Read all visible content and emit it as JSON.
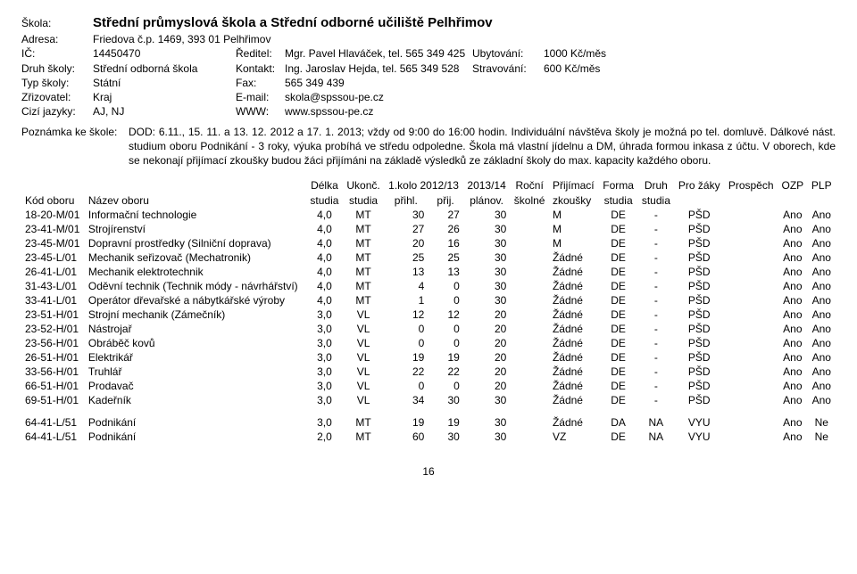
{
  "header": {
    "school_label": "Škola:",
    "school_name": "Střední průmyslová škola a Střední odborné učiliště Pelhřimov",
    "address_label": "Adresa:",
    "address": "Friedova č.p. 1469, 393 01  Pelhřimov",
    "ic_label": "IČ:",
    "ic": "14450470",
    "director_label": "Ředitel:",
    "director": "Mgr. Pavel Hlaváček, tel. 565 349 425",
    "accommodation_label": "Ubytování:",
    "accommodation": "1000 Kč/měs",
    "type_label": "Druh školy:",
    "type": "Střední odborná škola",
    "contact_label": "Kontakt:",
    "contact": "Ing. Jaroslav Hejda, tel. 565 349 528",
    "meals_label": "Stravování:",
    "meals": "600 Kč/měs",
    "schooltype_label": "Typ školy:",
    "schooltype": "Státní",
    "fax_label": "Fax:",
    "fax": "565 349 439",
    "founder_label": "Zřizovatel:",
    "founder": "Kraj",
    "email_label": "E-mail:",
    "email": "skola@spssou-pe.cz",
    "lang_label": "Cizí jazyky:",
    "lang": "AJ, NJ",
    "www_label": "WWW:",
    "www": "www.spssou-pe.cz"
  },
  "note": {
    "label": "Poznámka ke škole:",
    "text": "DOD: 6.11., 15. 11. a 13. 12. 2012 a 17. 1. 2013; vždy od 9:00 do 16:00 hodin. Individuální návštěva školy je možná po tel. domluvě. Dálkové nást. studium oboru Podnikání - 3 roky, výuka probíhá ve středu odpoledne. Škola má vlastní jídelnu a DM, úhrada formou inkasa z účtu. V oborech, kde se nekonají přijímací zkoušky budou žáci přijímáni na základě výsledků ze základní školy do max. kapacity každého oboru."
  },
  "table": {
    "columns": {
      "kod": {
        "l1": "",
        "l2": "Kód oboru"
      },
      "nazev": {
        "l1": "",
        "l2": "Název oboru"
      },
      "delka": {
        "l1": "Délka",
        "l2": "studia"
      },
      "ukonc": {
        "l1": "Ukonč.",
        "l2": "studia"
      },
      "prihl": {
        "l1": "1.kolo 2012/13",
        "l2": "přihl."
      },
      "prij": {
        "l1": "",
        "l2": "přij."
      },
      "planov": {
        "l1": "2013/14",
        "l2": "plánov."
      },
      "rocni": {
        "l1": "Roční",
        "l2": "školné"
      },
      "zkousky": {
        "l1": "Přijímací",
        "l2": "zkoušky"
      },
      "forma": {
        "l1": "Forma",
        "l2": "studia"
      },
      "druh": {
        "l1": "Druh",
        "l2": "studia"
      },
      "prozaky": {
        "l1": "Pro žáky",
        "l2": ""
      },
      "prospech": {
        "l1": "Prospěch",
        "l2": ""
      },
      "ozp": {
        "l1": "OZP",
        "l2": ""
      },
      "plp": {
        "l1": "PLP",
        "l2": ""
      }
    },
    "rows": [
      {
        "kod": "18-20-M/01",
        "nazev": "Informační technologie",
        "delka": "4,0",
        "ukonc": "MT",
        "prihl": "30",
        "prij": "27",
        "planov": "30",
        "rocni": "",
        "zkousky": "M",
        "forma": "DE",
        "druh": "-",
        "prozaky": "PŠD",
        "ozp": "Ano",
        "plp": "Ano"
      },
      {
        "kod": "23-41-M/01",
        "nazev": "Strojírenství",
        "delka": "4,0",
        "ukonc": "MT",
        "prihl": "27",
        "prij": "26",
        "planov": "30",
        "rocni": "",
        "zkousky": "M",
        "forma": "DE",
        "druh": "-",
        "prozaky": "PŠD",
        "ozp": "Ano",
        "plp": "Ano"
      },
      {
        "kod": "23-45-M/01",
        "nazev": "Dopravní prostředky (Silniční doprava)",
        "delka": "4,0",
        "ukonc": "MT",
        "prihl": "20",
        "prij": "16",
        "planov": "30",
        "rocni": "",
        "zkousky": "M",
        "forma": "DE",
        "druh": "-",
        "prozaky": "PŠD",
        "ozp": "Ano",
        "plp": "Ano"
      },
      {
        "kod": "23-45-L/01",
        "nazev": "Mechanik seřizovač (Mechatronik)",
        "delka": "4,0",
        "ukonc": "MT",
        "prihl": "25",
        "prij": "25",
        "planov": "30",
        "rocni": "",
        "zkousky": "Žádné",
        "forma": "DE",
        "druh": "-",
        "prozaky": "PŠD",
        "ozp": "Ano",
        "plp": "Ano"
      },
      {
        "kod": "26-41-L/01",
        "nazev": "Mechanik elektrotechnik",
        "delka": "4,0",
        "ukonc": "MT",
        "prihl": "13",
        "prij": "13",
        "planov": "30",
        "rocni": "",
        "zkousky": "Žádné",
        "forma": "DE",
        "druh": "-",
        "prozaky": "PŠD",
        "ozp": "Ano",
        "plp": "Ano"
      },
      {
        "kod": "31-43-L/01",
        "nazev": "Oděvní technik (Technik módy - návrhářství)",
        "delka": "4,0",
        "ukonc": "MT",
        "prihl": "4",
        "prij": "0",
        "planov": "30",
        "rocni": "",
        "zkousky": "Žádné",
        "forma": "DE",
        "druh": "-",
        "prozaky": "PŠD",
        "ozp": "Ano",
        "plp": "Ano"
      },
      {
        "kod": "33-41-L/01",
        "nazev": "Operátor dřevařské a nábytkářské výroby",
        "delka": "4,0",
        "ukonc": "MT",
        "prihl": "1",
        "prij": "0",
        "planov": "30",
        "rocni": "",
        "zkousky": "Žádné",
        "forma": "DE",
        "druh": "-",
        "prozaky": "PŠD",
        "ozp": "Ano",
        "plp": "Ano"
      },
      {
        "kod": "23-51-H/01",
        "nazev": "Strojní mechanik (Zámečník)",
        "delka": "3,0",
        "ukonc": "VL",
        "prihl": "12",
        "prij": "12",
        "planov": "20",
        "rocni": "",
        "zkousky": "Žádné",
        "forma": "DE",
        "druh": "-",
        "prozaky": "PŠD",
        "ozp": "Ano",
        "plp": "Ano"
      },
      {
        "kod": "23-52-H/01",
        "nazev": "Nástrojař",
        "delka": "3,0",
        "ukonc": "VL",
        "prihl": "0",
        "prij": "0",
        "planov": "20",
        "rocni": "",
        "zkousky": "Žádné",
        "forma": "DE",
        "druh": "-",
        "prozaky": "PŠD",
        "ozp": "Ano",
        "plp": "Ano"
      },
      {
        "kod": "23-56-H/01",
        "nazev": "Obráběč kovů",
        "delka": "3,0",
        "ukonc": "VL",
        "prihl": "0",
        "prij": "0",
        "planov": "20",
        "rocni": "",
        "zkousky": "Žádné",
        "forma": "DE",
        "druh": "-",
        "prozaky": "PŠD",
        "ozp": "Ano",
        "plp": "Ano"
      },
      {
        "kod": "26-51-H/01",
        "nazev": "Elektrikář",
        "delka": "3,0",
        "ukonc": "VL",
        "prihl": "19",
        "prij": "19",
        "planov": "20",
        "rocni": "",
        "zkousky": "Žádné",
        "forma": "DE",
        "druh": "-",
        "prozaky": "PŠD",
        "ozp": "Ano",
        "plp": "Ano"
      },
      {
        "kod": "33-56-H/01",
        "nazev": "Truhlář",
        "delka": "3,0",
        "ukonc": "VL",
        "prihl": "22",
        "prij": "22",
        "planov": "20",
        "rocni": "",
        "zkousky": "Žádné",
        "forma": "DE",
        "druh": "-",
        "prozaky": "PŠD",
        "ozp": "Ano",
        "plp": "Ano"
      },
      {
        "kod": "66-51-H/01",
        "nazev": "Prodavač",
        "delka": "3,0",
        "ukonc": "VL",
        "prihl": "0",
        "prij": "0",
        "planov": "20",
        "rocni": "",
        "zkousky": "Žádné",
        "forma": "DE",
        "druh": "-",
        "prozaky": "PŠD",
        "ozp": "Ano",
        "plp": "Ano"
      },
      {
        "kod": "69-51-H/01",
        "nazev": "Kadeřník",
        "delka": "3,0",
        "ukonc": "VL",
        "prihl": "34",
        "prij": "30",
        "planov": "30",
        "rocni": "",
        "zkousky": "Žádné",
        "forma": "DE",
        "druh": "-",
        "prozaky": "PŠD",
        "ozp": "Ano",
        "plp": "Ano"
      },
      {
        "kod": "64-41-L/51",
        "nazev": "Podnikání",
        "delka": "3,0",
        "ukonc": "MT",
        "prihl": "19",
        "prij": "19",
        "planov": "30",
        "rocni": "",
        "zkousky": "Žádné",
        "forma": "DA",
        "druh": "NA",
        "prozaky": "VYU",
        "ozp": "Ano",
        "plp": "Ne",
        "section": true
      },
      {
        "kod": "64-41-L/51",
        "nazev": "Podnikání",
        "delka": "2,0",
        "ukonc": "MT",
        "prihl": "60",
        "prij": "30",
        "planov": "30",
        "rocni": "",
        "zkousky": "VZ",
        "forma": "DE",
        "druh": "NA",
        "prozaky": "VYU",
        "ozp": "Ano",
        "plp": "Ne"
      }
    ]
  },
  "page_number": "16"
}
